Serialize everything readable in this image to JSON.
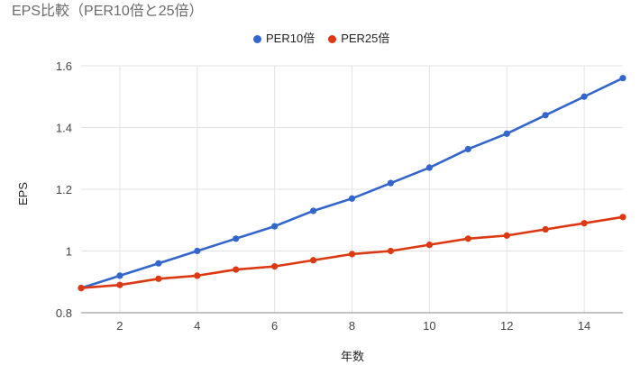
{
  "chart_data": {
    "type": "line",
    "title": "EPS比較（PER10倍と25倍）",
    "xlabel": "年数",
    "ylabel": "EPS",
    "x": [
      1,
      2,
      3,
      4,
      5,
      6,
      7,
      8,
      9,
      10,
      11,
      12,
      13,
      14,
      15
    ],
    "xlim": [
      1,
      15
    ],
    "ylim": [
      0.8,
      1.6
    ],
    "xticks": [
      2,
      4,
      6,
      8,
      10,
      12,
      14
    ],
    "yticks": [
      0.8,
      1,
      1.2,
      1.4,
      1.6
    ],
    "grid": true,
    "legend_position": "top",
    "series": [
      {
        "name": "PER10倍",
        "color": "#3366cc",
        "values": [
          0.88,
          0.92,
          0.96,
          1.0,
          1.04,
          1.08,
          1.13,
          1.17,
          1.22,
          1.27,
          1.33,
          1.38,
          1.44,
          1.5,
          1.56
        ]
      },
      {
        "name": "PER25倍",
        "color": "#dc3912",
        "values": [
          0.88,
          0.89,
          0.91,
          0.92,
          0.94,
          0.95,
          0.97,
          0.99,
          1.0,
          1.02,
          1.04,
          1.05,
          1.07,
          1.09,
          1.11
        ]
      }
    ]
  }
}
